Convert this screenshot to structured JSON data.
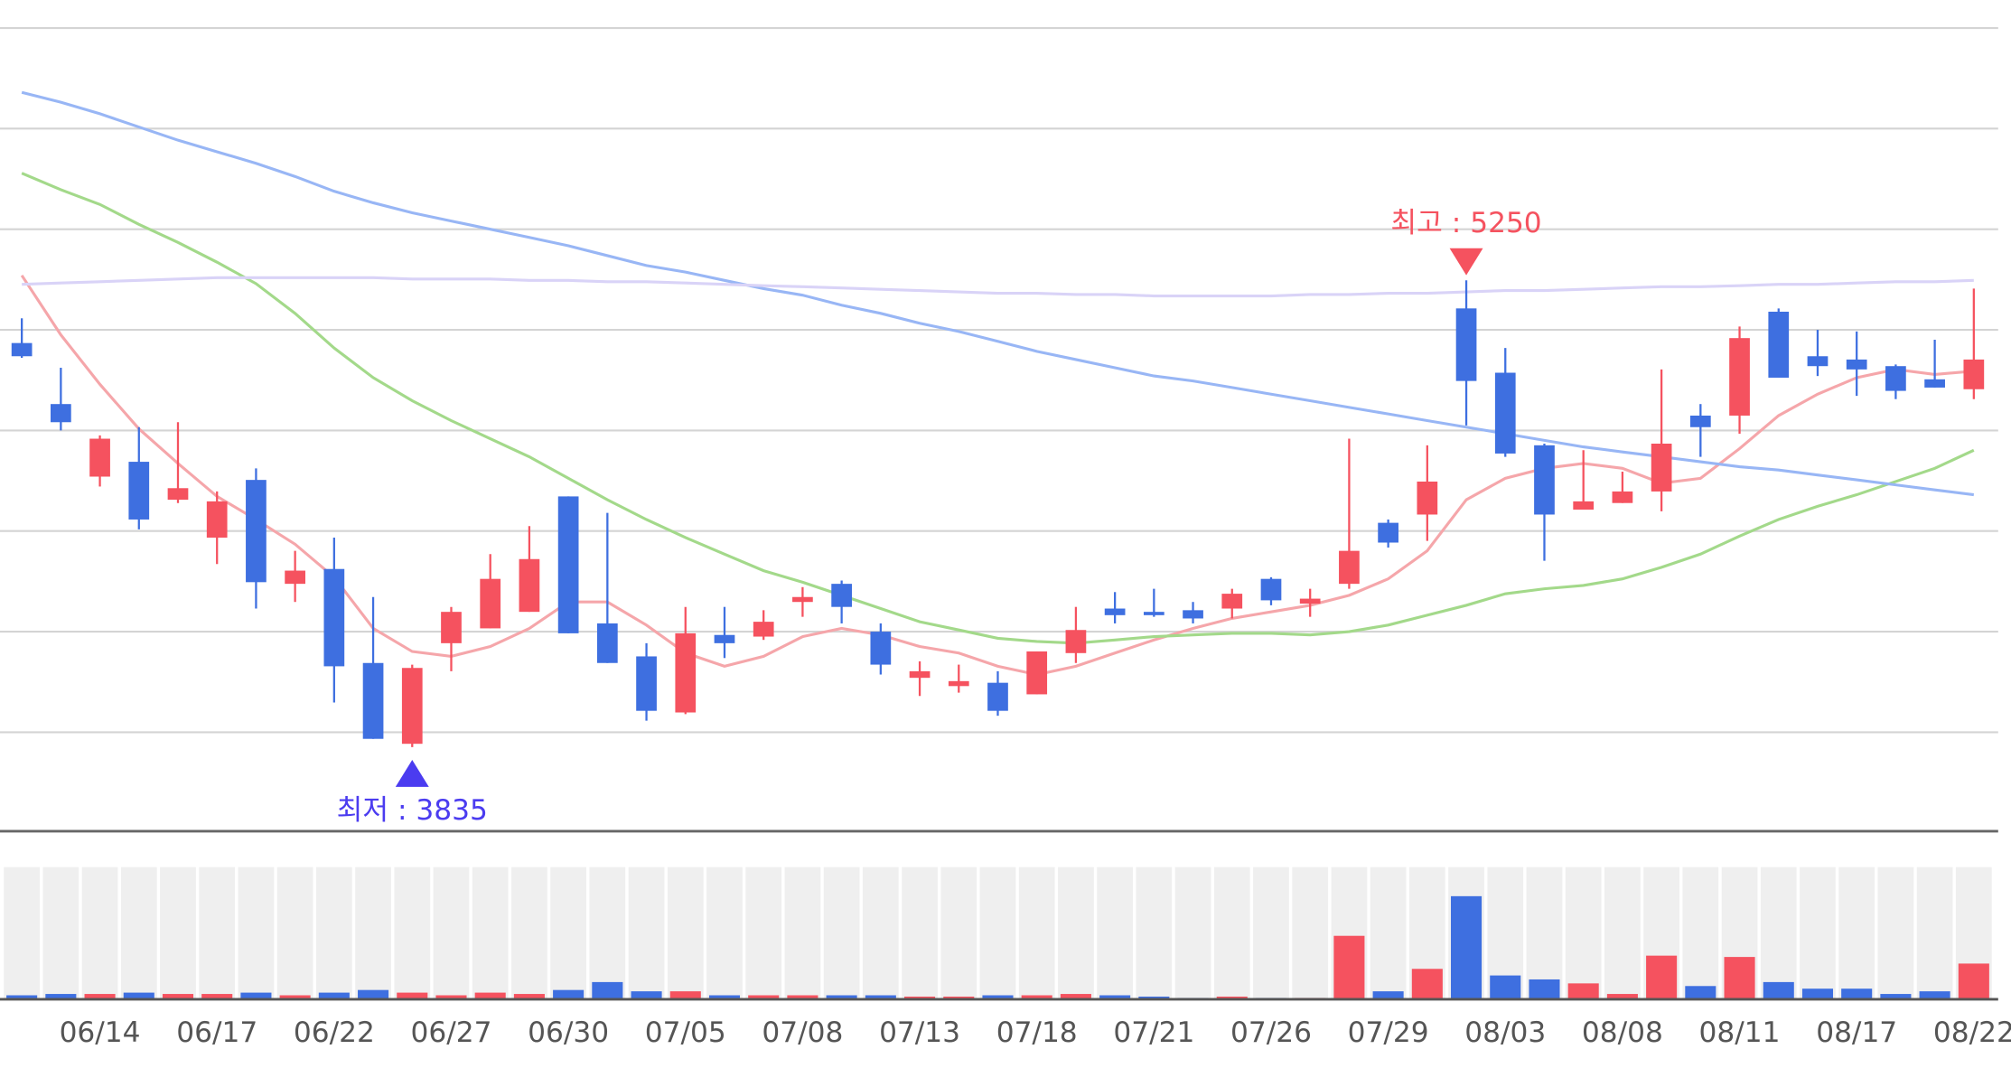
{
  "chart_data": {
    "type": "candlestick",
    "categories": [
      null,
      null,
      "06/14",
      null,
      null,
      "06/17",
      null,
      null,
      "06/22",
      null,
      null,
      "06/27",
      null,
      null,
      "06/30",
      null,
      null,
      "07/05",
      null,
      null,
      "07/08",
      null,
      null,
      "07/13",
      null,
      null,
      "07/18",
      null,
      null,
      "07/21",
      null,
      null,
      "07/26",
      null,
      null,
      "07/29",
      null,
      null,
      "08/03",
      null,
      null,
      "08/08",
      null,
      null,
      "08/11",
      null,
      null,
      "08/17",
      null,
      null,
      "08/22"
    ],
    "open": [
      5060,
      4875,
      4655,
      4700,
      4585,
      4470,
      4645,
      4330,
      4375,
      4090,
      3845,
      4150,
      4195,
      4245,
      4595,
      4210,
      4110,
      3940,
      4175,
      4170,
      4275,
      4330,
      4185,
      4045,
      4020,
      4030,
      3995,
      4120,
      4255,
      4245,
      4250,
      4255,
      4345,
      4270,
      4330,
      4515,
      4540,
      5165,
      4970,
      4750,
      4555,
      4575,
      4610,
      4840,
      4840,
      5155,
      5020,
      5010,
      4990,
      4950,
      4920
    ],
    "high": [
      5135,
      4985,
      4780,
      4805,
      4820,
      4610,
      4680,
      4430,
      4470,
      4290,
      4085,
      4260,
      4420,
      4505,
      4595,
      4545,
      4150,
      4260,
      4260,
      4250,
      4320,
      4340,
      4210,
      4095,
      4085,
      4065,
      4125,
      4260,
      4305,
      4315,
      4275,
      4315,
      4350,
      4315,
      4770,
      4525,
      4750,
      5250,
      5045,
      4755,
      4735,
      4670,
      4980,
      4875,
      5110,
      5165,
      5100,
      5095,
      4995,
      5070,
      5225
    ],
    "low": [
      5015,
      4795,
      4625,
      4495,
      4575,
      4390,
      4255,
      4275,
      3970,
      3860,
      3835,
      4065,
      4195,
      4245,
      4180,
      4090,
      3915,
      3935,
      4105,
      4160,
      4230,
      4210,
      4055,
      3990,
      4000,
      3930,
      3995,
      4090,
      4210,
      4230,
      4210,
      4225,
      4265,
      4230,
      4315,
      4440,
      4460,
      4810,
      4715,
      4400,
      4555,
      4575,
      4550,
      4715,
      4785,
      4955,
      4960,
      4900,
      4890,
      4925,
      4890
    ],
    "close": [
      5020,
      4820,
      4770,
      4525,
      4620,
      4580,
      4335,
      4370,
      4080,
      3860,
      4075,
      4245,
      4345,
      4405,
      4180,
      4090,
      3945,
      4180,
      4150,
      4215,
      4290,
      4260,
      4085,
      4065,
      4035,
      3945,
      4125,
      4190,
      4235,
      4235,
      4225,
      4300,
      4280,
      4285,
      4430,
      4455,
      4640,
      4945,
      4725,
      4540,
      4580,
      4610,
      4755,
      4805,
      5075,
      4955,
      4990,
      4980,
      4915,
      4925,
      5010
    ],
    "volume": [
      3,
      4,
      4,
      5,
      4,
      4,
      5,
      3,
      5,
      7,
      5,
      3,
      5,
      4,
      7,
      13,
      6,
      6,
      3,
      3,
      3,
      3,
      3,
      2,
      2,
      3,
      3,
      4,
      3,
      2,
      1,
      2,
      1,
      1,
      48,
      6,
      23,
      78,
      18,
      15,
      12,
      4,
      33,
      10,
      32,
      13,
      8,
      8,
      4,
      6,
      27
    ],
    "volume_ylim": [
      0,
      100
    ],
    "up_color": "#f5525f",
    "down_color": "#3e6fe0",
    "ylim": [
      3580,
      6100
    ],
    "yticks": [
      6015,
      5710,
      5405,
      5100,
      4795,
      4490,
      4185,
      3880
    ],
    "grid": true,
    "moving_averages": [
      {
        "color": "#f5a6aa",
        "values": [
          5265,
          5085,
          4935,
          4800,
          4695,
          4595,
          4525,
          4450,
          4350,
          4195,
          4125,
          4110,
          4140,
          4195,
          4275,
          4275,
          4205,
          4120,
          4080,
          4110,
          4170,
          4195,
          4175,
          4140,
          4120,
          4080,
          4055,
          4080,
          4120,
          4160,
          4195,
          4225,
          4245,
          4265,
          4295,
          4345,
          4430,
          4585,
          4650,
          4680,
          4695,
          4680,
          4635,
          4650,
          4740,
          4840,
          4905,
          4955,
          4980,
          4965,
          4975
        ]
      },
      {
        "color": "#a3d98a",
        "values": [
          5575,
          5525,
          5480,
          5420,
          5365,
          5305,
          5240,
          5150,
          5045,
          4955,
          4885,
          4825,
          4770,
          4715,
          4650,
          4585,
          4525,
          4470,
          4420,
          4370,
          4335,
          4295,
          4255,
          4215,
          4190,
          4165,
          4155,
          4150,
          4160,
          4170,
          4175,
          4180,
          4180,
          4175,
          4185,
          4205,
          4235,
          4265,
          4300,
          4315,
          4325,
          4345,
          4380,
          4420,
          4475,
          4525,
          4565,
          4600,
          4640,
          4680,
          4735
        ]
      },
      {
        "color": "#98b6f5",
        "values": [
          5820,
          5790,
          5755,
          5715,
          5675,
          5640,
          5605,
          5565,
          5520,
          5485,
          5455,
          5430,
          5405,
          5380,
          5355,
          5325,
          5295,
          5275,
          5250,
          5225,
          5205,
          5175,
          5150,
          5120,
          5095,
          5065,
          5035,
          5010,
          4985,
          4960,
          4945,
          4925,
          4905,
          4885,
          4865,
          4845,
          4825,
          4805,
          4785,
          4765,
          4745,
          4730,
          4715,
          4700,
          4685,
          4675,
          4660,
          4645,
          4630,
          4615,
          4600
        ]
      },
      {
        "color": "#d9d3f7",
        "values": [
          5238,
          5242,
          5246,
          5250,
          5254,
          5258,
          5258,
          5258,
          5258,
          5258,
          5254,
          5254,
          5254,
          5250,
          5250,
          5246,
          5246,
          5242,
          5238,
          5234,
          5231,
          5227,
          5223,
          5219,
          5215,
          5211,
          5211,
          5207,
          5207,
          5203,
          5203,
          5203,
          5203,
          5207,
          5207,
          5211,
          5211,
          5215,
          5219,
          5219,
          5223,
          5227,
          5231,
          5231,
          5234,
          5238,
          5238,
          5242,
          5246,
          5246,
          5250
        ]
      }
    ],
    "annotations": [
      {
        "text": "최고 : 5250",
        "value": 5250,
        "color": "#f5525f"
      },
      {
        "text": "최저 : 3835",
        "value": 3835,
        "color": "#4b3cf0"
      }
    ]
  }
}
